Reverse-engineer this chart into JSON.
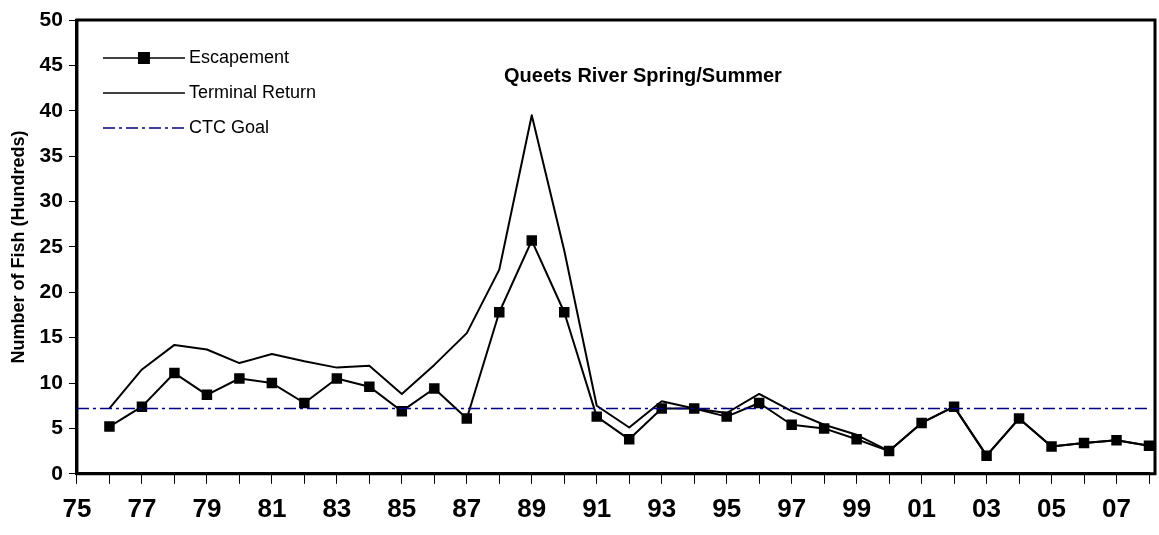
{
  "chart_data": {
    "type": "line",
    "title": "Queets River Spring/Summer",
    "ylabel": "Number of Fish (Hundreds)",
    "x": [
      1976,
      1977,
      1978,
      1979,
      1980,
      1981,
      1982,
      1983,
      1984,
      1985,
      1986,
      1987,
      1988,
      1989,
      1990,
      1991,
      1992,
      1993,
      1994,
      1995,
      1996,
      1997,
      1998,
      1999,
      2000,
      2001,
      2002,
      2003,
      2004,
      2005,
      2006,
      2007,
      2008
    ],
    "series": [
      {
        "name": "Escapement",
        "color": "#000000",
        "marker": "square",
        "values": [
          5.2,
          7.4,
          11.1,
          8.7,
          10.5,
          10.0,
          7.8,
          10.5,
          9.6,
          6.9,
          9.4,
          6.1,
          17.8,
          25.7,
          17.8,
          6.3,
          3.8,
          7.2,
          7.2,
          6.3,
          7.8,
          5.4,
          5.0,
          3.8,
          2.5,
          5.6,
          7.4,
          2.0,
          6.1,
          3.0,
          3.4,
          3.7,
          3.1
        ]
      },
      {
        "name": "Terminal Return",
        "color": "#000000",
        "marker": "none",
        "values": [
          7.2,
          11.5,
          14.2,
          13.7,
          12.2,
          13.2,
          12.4,
          11.7,
          11.9,
          8.8,
          12.0,
          15.5,
          22.5,
          39.5,
          24.6,
          7.5,
          5.1,
          8.0,
          7.2,
          6.7,
          8.8,
          6.9,
          5.4,
          4.3,
          2.5,
          5.6,
          7.4,
          2.0,
          6.1,
          3.0,
          3.4,
          3.7,
          3.1
        ]
      }
    ],
    "ref_lines": [
      {
        "axis": "y",
        "value": 7.2,
        "label": "CTC Goal",
        "color": "#000080",
        "line_style": "dashed"
      }
    ],
    "xlim": [
      1975,
      2008
    ],
    "xticks": [
      {
        "value": 1975,
        "label": "75"
      },
      {
        "value": 1976,
        "label": null
      },
      {
        "value": 1977,
        "label": "77"
      },
      {
        "value": 1978,
        "label": null
      },
      {
        "value": 1979,
        "label": "79"
      },
      {
        "value": 1980,
        "label": null
      },
      {
        "value": 1981,
        "label": "81"
      },
      {
        "value": 1982,
        "label": null
      },
      {
        "value": 1983,
        "label": "83"
      },
      {
        "value": 1984,
        "label": null
      },
      {
        "value": 1985,
        "label": "85"
      },
      {
        "value": 1986,
        "label": null
      },
      {
        "value": 1987,
        "label": "87"
      },
      {
        "value": 1988,
        "label": null
      },
      {
        "value": 1989,
        "label": "89"
      },
      {
        "value": 1990,
        "label": null
      },
      {
        "value": 1991,
        "label": "91"
      },
      {
        "value": 1992,
        "label": null
      },
      {
        "value": 1993,
        "label": "93"
      },
      {
        "value": 1994,
        "label": null
      },
      {
        "value": 1995,
        "label": "95"
      },
      {
        "value": 1996,
        "label": null
      },
      {
        "value": 1997,
        "label": "97"
      },
      {
        "value": 1998,
        "label": null
      },
      {
        "value": 1999,
        "label": "99"
      },
      {
        "value": 2000,
        "label": null
      },
      {
        "value": 2001,
        "label": "01"
      },
      {
        "value": 2002,
        "label": null
      },
      {
        "value": 2003,
        "label": "03"
      },
      {
        "value": 2004,
        "label": null
      },
      {
        "value": 2005,
        "label": "05"
      },
      {
        "value": 2006,
        "label": null
      },
      {
        "value": 2007,
        "label": "07"
      },
      {
        "value": 2008,
        "label": null
      }
    ],
    "ylim": [
      0,
      50
    ],
    "yticks": [
      0,
      5,
      10,
      15,
      20,
      25,
      30,
      35,
      40,
      45,
      50
    ],
    "grid": false,
    "legend": "top left"
  }
}
